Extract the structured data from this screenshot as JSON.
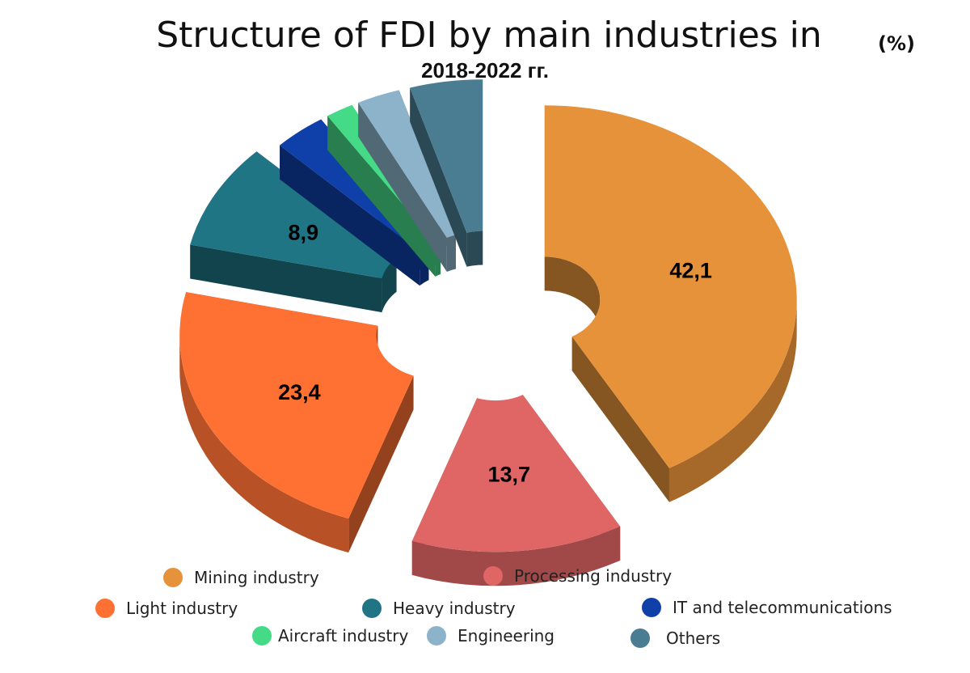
{
  "title": "Structure of FDI by main industries in",
  "unit": "(%)",
  "subtitle": "2018-2022 гг.",
  "chart_data": {
    "type": "pie",
    "title": "Structure of FDI by main industries in",
    "subtitle": "2018-2022 гг.",
    "unit": "(%)",
    "style": "3D exploded donut",
    "legend_position": "bottom",
    "categories": [
      "Mining industry",
      "Processing industry",
      "Light industry",
      "Heavy industry",
      "IT and telecommunications",
      "Aircraft industry",
      "Engineering",
      "Others"
    ],
    "values": [
      42.1,
      13.7,
      23.4,
      8.9,
      3.4,
      1.8,
      2.8,
      4.7
    ],
    "data_labels": [
      "42,1",
      "13,7",
      "23,4",
      "8,9",
      "",
      "",
      "",
      ""
    ],
    "colors": [
      "#E6923A",
      "#E06666",
      "#FF7033",
      "#1F7584",
      "#0F3FA8",
      "#45DA86",
      "#8CB3CA",
      "#4A7C92"
    ]
  },
  "legend": [
    {
      "label": "Mining industry",
      "color": "#E6923A"
    },
    {
      "label": "Processing industry",
      "color": "#E06666"
    },
    {
      "label": "Light industry",
      "color": "#FF7033"
    },
    {
      "label": "Heavy industry",
      "color": "#1F7584"
    },
    {
      "label": "IT and telecommunications",
      "color": "#0F3FA8"
    },
    {
      "label": "Aircraft industry",
      "color": "#45DA86"
    },
    {
      "label": "Engineering",
      "color": "#8CB3CA"
    },
    {
      "label": "Others",
      "color": "#4A7C92"
    }
  ]
}
